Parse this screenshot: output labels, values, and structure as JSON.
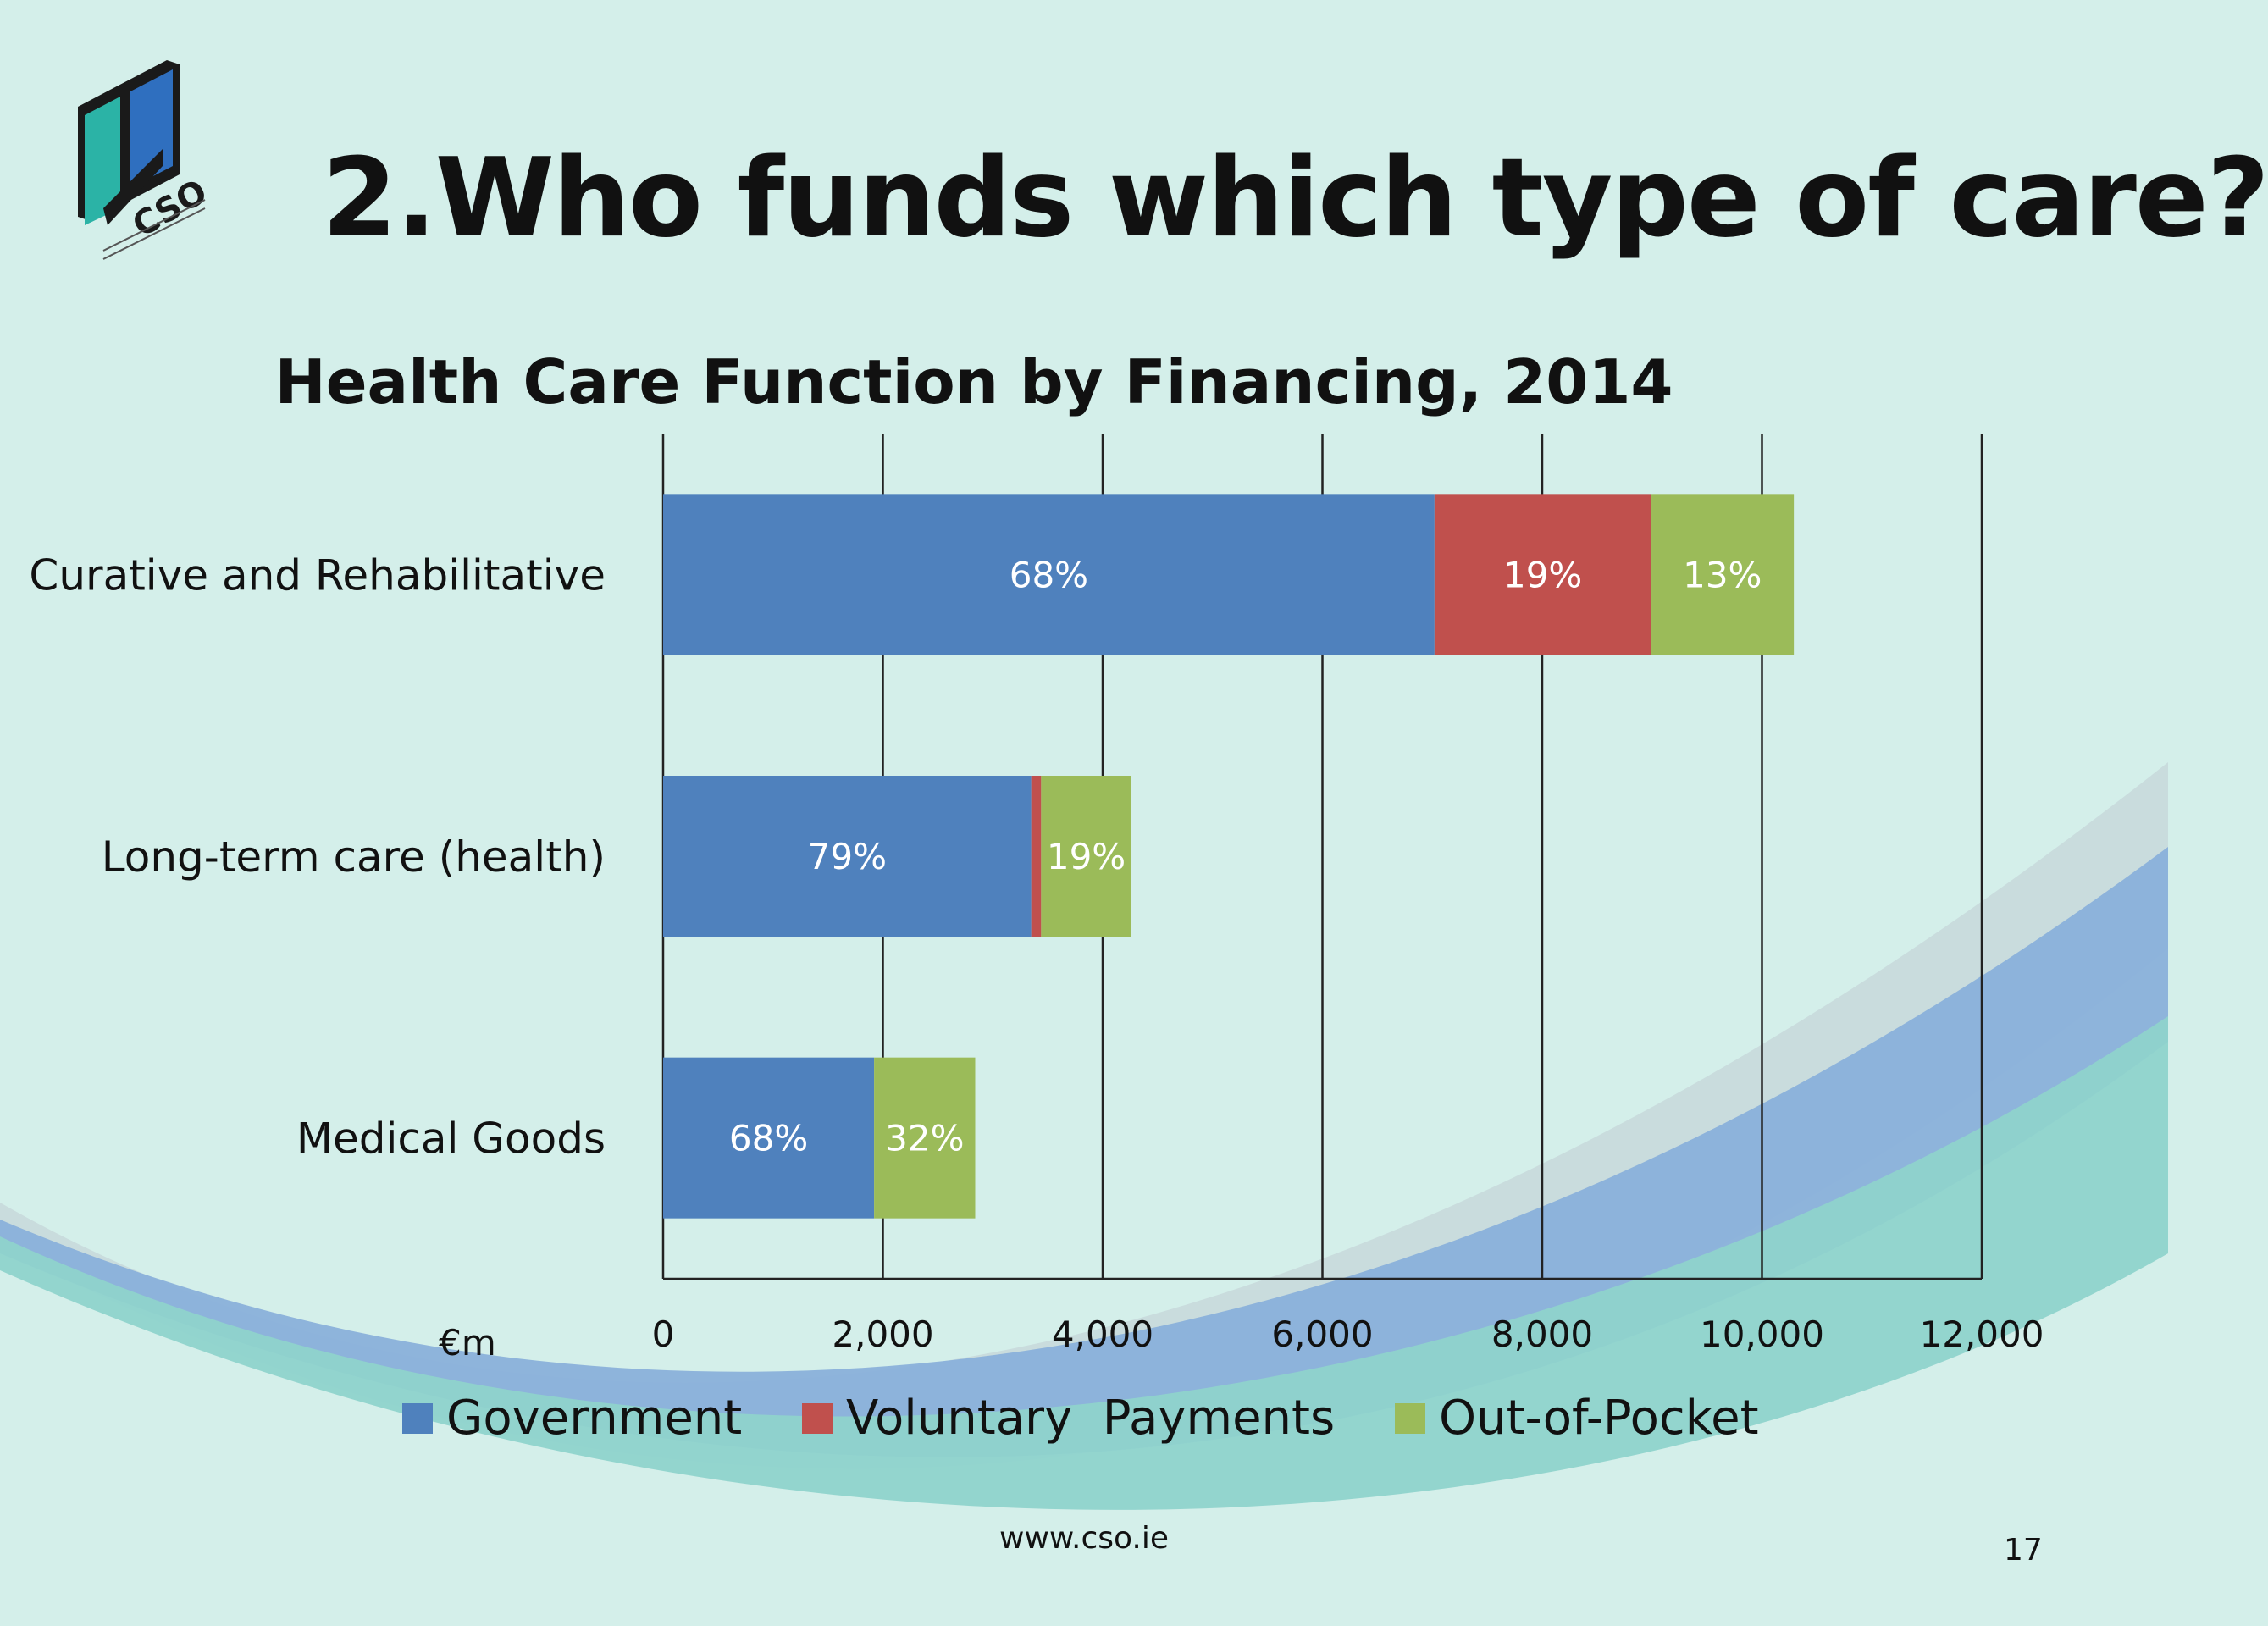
{
  "slide": {
    "title": "2.Who funds which type of care?",
    "logo_text": "CSO",
    "footer_url": "www.cso.ie",
    "page_number": "17"
  },
  "colors": {
    "background": "#d4efea",
    "government": "#4f81bd",
    "voluntary": "#c0504d",
    "out_of_pocket": "#9bbb59"
  },
  "chart_data": {
    "type": "bar",
    "orientation": "horizontal",
    "stacked": true,
    "title": "Health Care Function by Financing, 2014",
    "xlabel": "€m",
    "ylabel": "",
    "xlim": [
      0,
      12000
    ],
    "xticks": [
      "0",
      "2,000",
      "4,000",
      "6,000",
      "8,000",
      "10,000",
      "12,000"
    ],
    "grid": true,
    "legend_position": "bottom",
    "categories": [
      "Curative and Rehabilitative",
      "Long-term care (health)",
      "Medical Goods"
    ],
    "series": [
      {
        "name": "Government",
        "values": [
          7020,
          3350,
          1920
        ],
        "labels": [
          "68%",
          "79%",
          "68%"
        ],
        "color": "#4f81bd"
      },
      {
        "name": "Voluntary  Payments",
        "values": [
          1970,
          90,
          0
        ],
        "labels": [
          "19%",
          "",
          ""
        ],
        "color": "#c0504d"
      },
      {
        "name": "Out-of-Pocket",
        "values": [
          1300,
          820,
          920
        ],
        "labels": [
          "13%",
          "19%",
          "32%"
        ],
        "color": "#9bbb59"
      }
    ]
  }
}
